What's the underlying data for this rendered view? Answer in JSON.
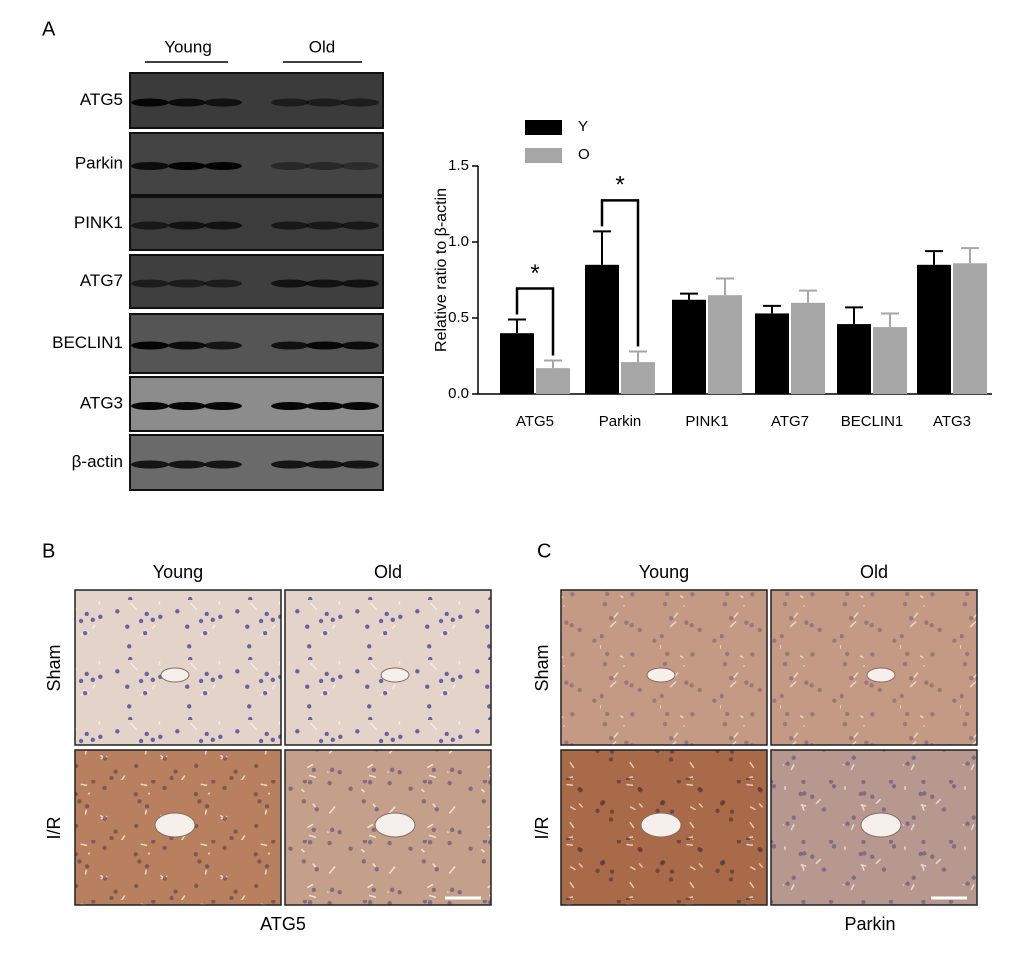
{
  "panel_a": {
    "label": "A",
    "groups": [
      "Young",
      "Old"
    ],
    "blot_rows": [
      "ATG5",
      "Parkin",
      "PINK1",
      "ATG7",
      "BECLIN1",
      "ATG3",
      "β-actin"
    ]
  },
  "chart_data": {
    "type": "bar",
    "ylabel": "Relative ratio to β-actin",
    "categories": [
      "ATG5",
      "Parkin",
      "PINK1",
      "ATG7",
      "BECLIN1",
      "ATG3"
    ],
    "series": [
      {
        "name": "Y",
        "color": "#000000",
        "values": [
          0.4,
          0.85,
          0.62,
          0.53,
          0.46,
          0.85
        ],
        "errors": [
          0.09,
          0.22,
          0.04,
          0.05,
          0.11,
          0.09
        ]
      },
      {
        "name": "O",
        "color": "#a6a6a6",
        "values": [
          0.17,
          0.21,
          0.65,
          0.6,
          0.44,
          0.86
        ],
        "errors": [
          0.05,
          0.07,
          0.11,
          0.08,
          0.09,
          0.1
        ]
      }
    ],
    "ylim": [
      0,
      1.5
    ],
    "yticks": [
      {
        "value": 0,
        "label": "0.0"
      },
      {
        "value": 0.5,
        "label": "0.5"
      },
      {
        "value": 1,
        "label": "1.0"
      },
      {
        "value": 1.5,
        "label": "1.5"
      }
    ],
    "annotations": [
      {
        "text": "*",
        "category": "ATG5"
      },
      {
        "text": "*",
        "category": "Parkin"
      }
    ]
  },
  "panel_b": {
    "label": "B",
    "columns": [
      "Young",
      "Old"
    ],
    "rows": [
      "Sham",
      "I/R"
    ],
    "caption": "ATG5"
  },
  "panel_c": {
    "label": "C",
    "columns": [
      "Young",
      "Old"
    ],
    "rows": [
      "Sham",
      "I/R"
    ],
    "caption": "Parkin"
  }
}
